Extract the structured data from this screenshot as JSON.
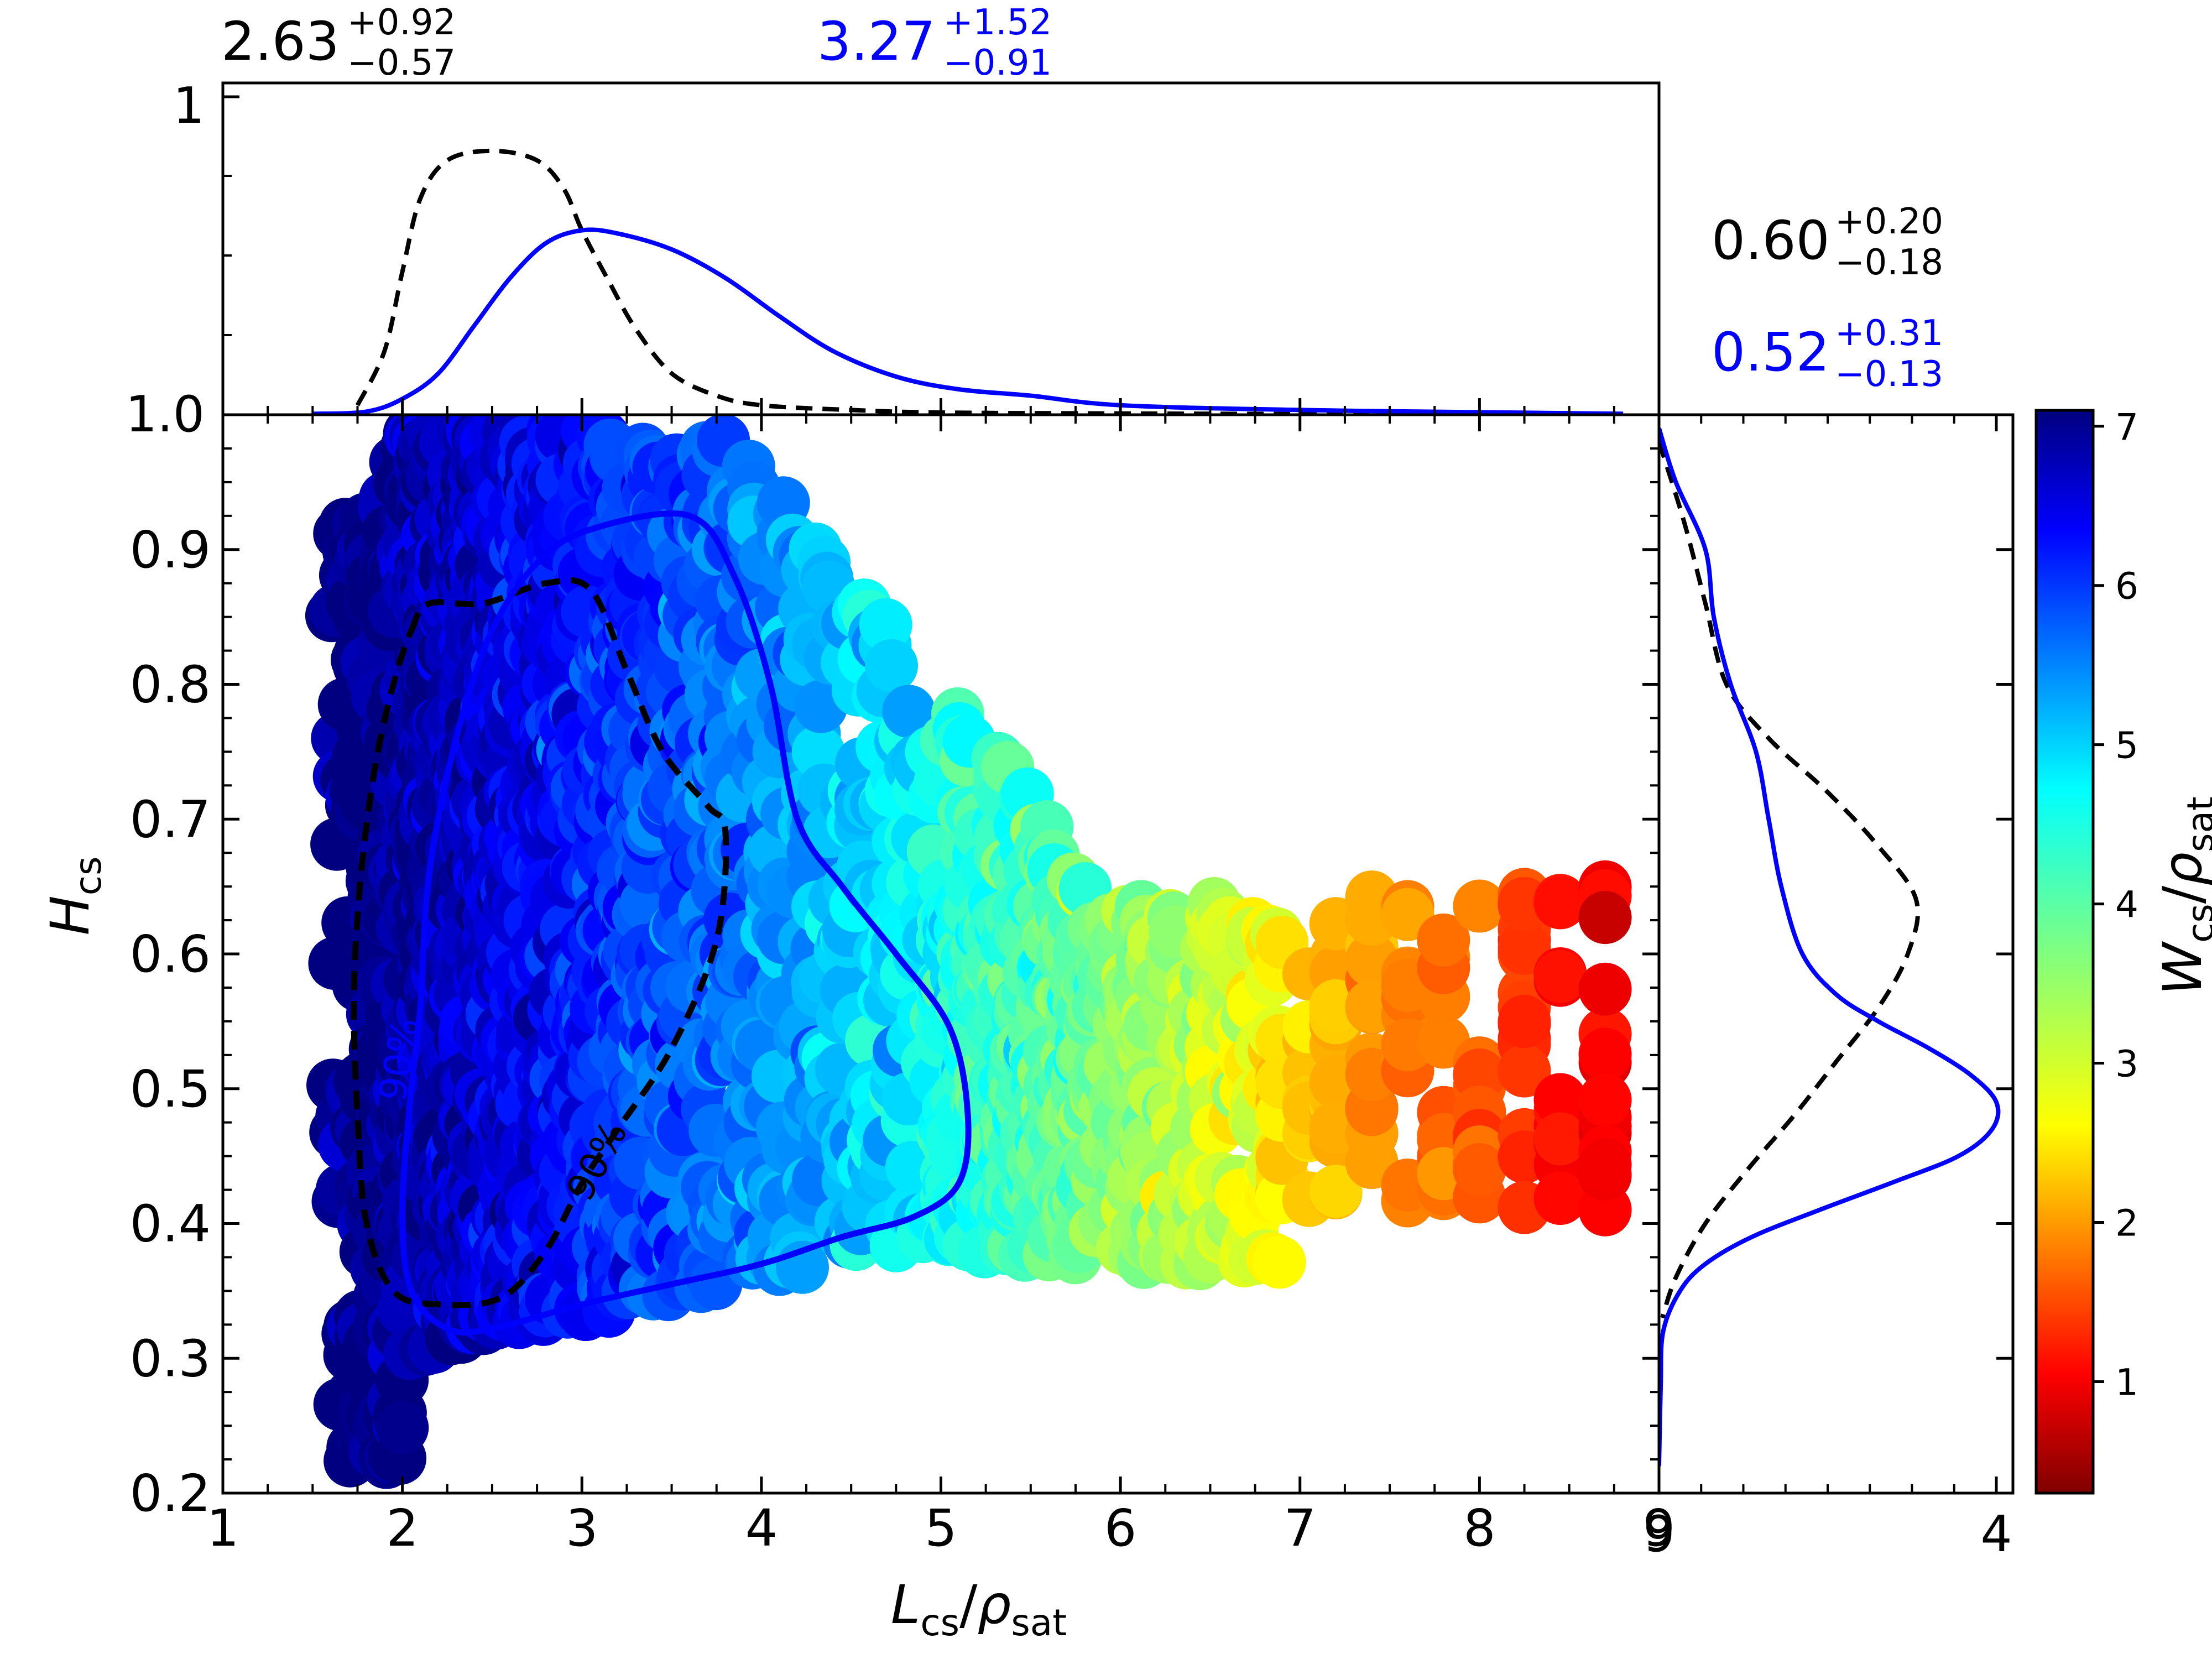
{
  "chart_data": {
    "type": "scatter",
    "main": {
      "xlabel": {
        "main": "L",
        "sub1": "cs",
        "slash": "/",
        "rho": "ρ",
        "sub2": "sat"
      },
      "ylabel": {
        "main": "H",
        "sub": "cs"
      },
      "xlim": [
        1,
        9
      ],
      "ylim": [
        0.2,
        1.0
      ],
      "xticks": [
        "1",
        "2",
        "3",
        "4",
        "5",
        "6",
        "7",
        "8",
        "9"
      ],
      "yticks": [
        "0.2",
        "0.3",
        "0.4",
        "0.5",
        "0.6",
        "0.7",
        "0.8",
        "0.9",
        "1.0"
      ],
      "contour_labels": {
        "black": "90%",
        "blue": "90%"
      },
      "contour_black": [
        [
          2.05,
          0.84
        ],
        [
          2.15,
          0.86
        ],
        [
          2.45,
          0.86
        ],
        [
          2.8,
          0.875
        ],
        [
          3.05,
          0.87
        ],
        [
          3.25,
          0.81
        ],
        [
          3.45,
          0.75
        ],
        [
          3.7,
          0.71
        ],
        [
          3.8,
          0.69
        ],
        [
          3.75,
          0.61
        ],
        [
          3.5,
          0.53
        ],
        [
          3.2,
          0.47
        ],
        [
          3.0,
          0.43
        ],
        [
          2.8,
          0.38
        ],
        [
          2.55,
          0.345
        ],
        [
          2.2,
          0.34
        ],
        [
          1.95,
          0.35
        ],
        [
          1.8,
          0.4
        ],
        [
          1.75,
          0.48
        ],
        [
          1.73,
          0.57
        ],
        [
          1.77,
          0.66
        ],
        [
          1.85,
          0.74
        ],
        [
          1.95,
          0.8
        ],
        [
          2.05,
          0.84
        ]
      ],
      "contour_blue": [
        [
          2.1,
          0.56
        ],
        [
          2.15,
          0.66
        ],
        [
          2.3,
          0.76
        ],
        [
          2.5,
          0.84
        ],
        [
          2.75,
          0.89
        ],
        [
          3.05,
          0.915
        ],
        [
          3.6,
          0.925
        ],
        [
          3.85,
          0.88
        ],
        [
          4.05,
          0.8
        ],
        [
          4.2,
          0.7
        ],
        [
          4.45,
          0.65
        ],
        [
          4.75,
          0.6
        ],
        [
          5.05,
          0.545
        ],
        [
          5.15,
          0.48
        ],
        [
          5.1,
          0.43
        ],
        [
          4.85,
          0.405
        ],
        [
          4.45,
          0.39
        ],
        [
          4.0,
          0.37
        ],
        [
          3.5,
          0.355
        ],
        [
          3.0,
          0.34
        ],
        [
          2.5,
          0.322
        ],
        [
          2.25,
          0.322
        ],
        [
          2.05,
          0.35
        ],
        [
          2.0,
          0.41
        ],
        [
          2.05,
          0.5
        ],
        [
          2.1,
          0.56
        ]
      ],
      "points_summary": {
        "x_range": [
          1.55,
          8.7
        ],
        "y_range": [
          0.22,
          0.99
        ],
        "x_steps": [
          6.9,
          7.05,
          7.2,
          7.4,
          7.6,
          7.8,
          8.0,
          8.25,
          8.45,
          8.7
        ],
        "color_min": 0.3,
        "color_max": 7.1
      }
    },
    "top_marginal": {
      "ytick_top": "1",
      "ytick_bottom": "1.0",
      "black_curve": [
        [
          1.75,
          0.03
        ],
        [
          1.9,
          0.2
        ],
        [
          2.0,
          0.45
        ],
        [
          2.1,
          0.68
        ],
        [
          2.25,
          0.8
        ],
        [
          2.5,
          0.83
        ],
        [
          2.75,
          0.8
        ],
        [
          2.9,
          0.71
        ],
        [
          3.0,
          0.58
        ],
        [
          3.15,
          0.42
        ],
        [
          3.3,
          0.27
        ],
        [
          3.5,
          0.13
        ],
        [
          3.75,
          0.06
        ],
        [
          4.0,
          0.03
        ],
        [
          4.5,
          0.015
        ],
        [
          5.0,
          0.007
        ],
        [
          6.0,
          0.004
        ],
        [
          7.5,
          0.002
        ],
        [
          8.5,
          0.005
        ]
      ],
      "blue_curve": [
        [
          1.5,
          0.003
        ],
        [
          1.8,
          0.01
        ],
        [
          2.0,
          0.05
        ],
        [
          2.2,
          0.13
        ],
        [
          2.4,
          0.28
        ],
        [
          2.6,
          0.43
        ],
        [
          2.8,
          0.54
        ],
        [
          3.0,
          0.58
        ],
        [
          3.2,
          0.57
        ],
        [
          3.5,
          0.52
        ],
        [
          3.8,
          0.43
        ],
        [
          4.1,
          0.31
        ],
        [
          4.4,
          0.2
        ],
        [
          4.75,
          0.12
        ],
        [
          5.1,
          0.08
        ],
        [
          5.5,
          0.06
        ],
        [
          6.0,
          0.03
        ],
        [
          7.0,
          0.015
        ],
        [
          8.0,
          0.008
        ],
        [
          8.8,
          0.003
        ]
      ],
      "stat_black": {
        "value": "2.63",
        "plus": "+0.92",
        "minus": "−0.57"
      },
      "stat_blue": {
        "value": "3.27",
        "plus": "+1.52",
        "minus": "−0.91"
      }
    },
    "right_marginal": {
      "xtick_left": "9",
      "xtick_right": "4",
      "black_curve": [
        [
          0.98,
          0.0
        ],
        [
          0.92,
          0.3
        ],
        [
          0.86,
          0.55
        ],
        [
          0.8,
          0.8
        ],
        [
          0.76,
          1.3
        ],
        [
          0.72,
          2.0
        ],
        [
          0.68,
          2.6
        ],
        [
          0.64,
          3.05
        ],
        [
          0.6,
          2.95
        ],
        [
          0.56,
          2.6
        ],
        [
          0.52,
          2.1
        ],
        [
          0.48,
          1.6
        ],
        [
          0.44,
          1.05
        ],
        [
          0.4,
          0.55
        ],
        [
          0.36,
          0.2
        ],
        [
          0.33,
          0.04
        ]
      ],
      "blue_curve": [
        [
          0.99,
          0.0
        ],
        [
          0.95,
          0.2
        ],
        [
          0.9,
          0.55
        ],
        [
          0.85,
          0.65
        ],
        [
          0.8,
          0.85
        ],
        [
          0.75,
          1.15
        ],
        [
          0.7,
          1.3
        ],
        [
          0.65,
          1.45
        ],
        [
          0.6,
          1.7
        ],
        [
          0.57,
          2.1
        ],
        [
          0.55,
          2.6
        ],
        [
          0.53,
          3.2
        ],
        [
          0.51,
          3.7
        ],
        [
          0.49,
          4.0
        ],
        [
          0.47,
          3.95
        ],
        [
          0.45,
          3.55
        ],
        [
          0.43,
          2.75
        ],
        [
          0.41,
          1.9
        ],
        [
          0.39,
          1.1
        ],
        [
          0.37,
          0.55
        ],
        [
          0.35,
          0.25
        ],
        [
          0.32,
          0.05
        ],
        [
          0.28,
          0.02
        ],
        [
          0.22,
          0.0
        ]
      ],
      "stat_black": {
        "value": "0.60",
        "plus": "+0.20",
        "minus": "−0.18"
      },
      "stat_blue": {
        "value": "0.52",
        "plus": "+0.31",
        "minus": "−0.13"
      }
    },
    "colorbar": {
      "label": {
        "main": "W",
        "sub1": "cs",
        "slash": "/",
        "rho": "ρ",
        "sub2": "sat"
      },
      "range": [
        0.3,
        7.1
      ],
      "ticks": [
        "1",
        "2",
        "3",
        "4",
        "5",
        "6",
        "7"
      ],
      "colormap": "jet"
    },
    "colors": {
      "black_series": "#000000",
      "blue_series": "#0000ff"
    }
  }
}
